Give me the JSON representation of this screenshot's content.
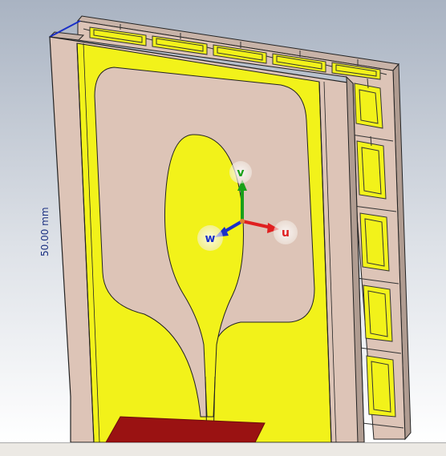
{
  "viewport": {
    "background_top": "#a9b3c2",
    "background_bottom": "#ffffff",
    "dimension_label": "50.00 mm"
  },
  "axes": {
    "u_label": "u",
    "v_label": "v",
    "w_label": "w",
    "u_color": "#e02020",
    "v_color": "#18a018",
    "w_color": "#1a2fc8"
  },
  "colors": {
    "substrate": "#ddc4b7",
    "metal": "#f2f21a",
    "port": "#9a1212"
  }
}
